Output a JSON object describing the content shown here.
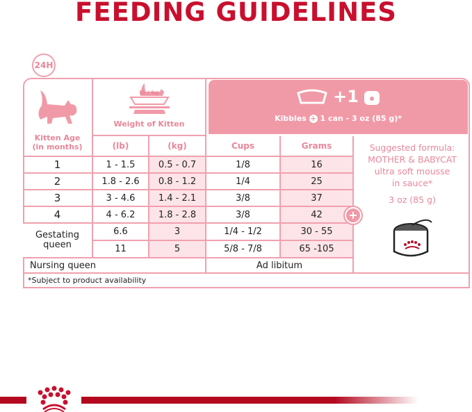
{
  "title": "FEEDING GUIDELINES",
  "badge_24h": "24H",
  "headers": {
    "kitten_age": "Kitten Age\n(in months)",
    "scale_label": "lb / kg",
    "weight": "Weight of Kitten",
    "lb": "(lb)",
    "kg": "(kg)",
    "cups": "Cups",
    "grams": "Grams",
    "plus_one": "+1",
    "kibbles": "Kibbles",
    "kibbles_rest": "1 can - 3 oz (85 g)*"
  },
  "rows": [
    {
      "age": "1",
      "lb": "1 - 1.5",
      "kg": "0.5 - 0.7",
      "cups": "1/8",
      "grams": "16"
    },
    {
      "age": "2",
      "lb": "1.8 - 2.6",
      "kg": "0.8 - 1.2",
      "cups": "1/4",
      "grams": "25"
    },
    {
      "age": "3",
      "lb": "3 - 4.6",
      "kg": "1.4 - 2.1",
      "cups": "3/8",
      "grams": "37"
    },
    {
      "age": "4",
      "lb": "4 - 6.2",
      "kg": "1.8 - 2.8",
      "cups": "3/8",
      "grams": "42"
    },
    {
      "age": "Gestating\nqueen",
      "lb": "6.6",
      "kg": "3",
      "cups": "1/4 - 1/2",
      "grams": "30 - 55"
    },
    {
      "age": "",
      "lb": "11",
      "kg": "5",
      "cups": "5/8 - 7/8",
      "grams": "65 -105"
    }
  ],
  "nursing": {
    "label": "Nursing queen",
    "value": "Ad libitum"
  },
  "suggestion": {
    "line1": "Suggested formula:",
    "line2": "MOTHER & BABYCAT",
    "line3": "ultra soft mousse",
    "line4": "in sauce*",
    "amount": "3 oz (85 g)"
  },
  "footnote": "*Subject to product availability",
  "colors": {
    "brand_red": "#c8102e",
    "pink": "#f19aa7",
    "light_pink": "#fde4e8",
    "text_pink": "#e8879a"
  }
}
